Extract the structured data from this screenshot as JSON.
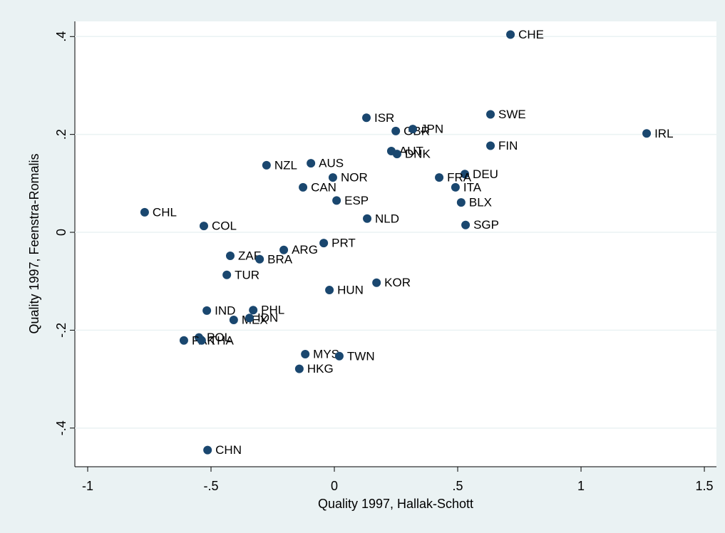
{
  "chart_data": {
    "type": "scatter",
    "xlabel": "Quality 1997, Hallak-Schott",
    "ylabel": "Quality 1997, Feenstra-Romalis",
    "color": "#1a476f",
    "grid": true,
    "point_labels": [
      "CHE",
      "SWE",
      "IRL",
      "FIN",
      "ISR",
      "GBR",
      "JPN",
      "AUT",
      "DNK",
      "NZL",
      "AUS",
      "NOR",
      "DEU",
      "FRA",
      "ITA",
      "CAN",
      "ESP",
      "BLX",
      "CHL",
      "NLD",
      "COL",
      "SGP",
      "PRT",
      "ARG",
      "ZAF",
      "BRA",
      "TUR",
      "HUN",
      "KOR",
      "IND",
      "PHL",
      "MEX",
      "IDN",
      "POL",
      "PAK",
      "THA",
      "MYS",
      "TWN",
      "HKG",
      "CHN"
    ],
    "x": [
      0.714,
      0.633,
      1.266,
      0.633,
      0.13,
      0.249,
      0.318,
      0.231,
      0.254,
      -0.275,
      -0.095,
      -0.006,
      0.529,
      0.425,
      0.491,
      -0.127,
      0.009,
      0.514,
      -0.769,
      0.133,
      -0.529,
      0.532,
      -0.043,
      -0.205,
      -0.422,
      -0.303,
      -0.436,
      -0.02,
      0.171,
      -0.517,
      -0.329,
      -0.408,
      -0.344,
      -0.549,
      -0.61,
      -0.538,
      -0.118,
      0.02,
      -0.142,
      -0.514
    ],
    "values": [
      0.404,
      0.241,
      0.202,
      0.177,
      0.234,
      0.207,
      0.211,
      0.166,
      0.16,
      0.137,
      0.141,
      0.112,
      0.119,
      0.112,
      0.092,
      0.092,
      0.065,
      0.061,
      0.041,
      0.028,
      0.013,
      0.015,
      -0.022,
      -0.036,
      -0.048,
      -0.055,
      -0.087,
      -0.118,
      -0.103,
      -0.16,
      -0.159,
      -0.179,
      -0.175,
      -0.215,
      -0.221,
      -0.221,
      -0.249,
      -0.253,
      -0.279,
      -0.445
    ],
    "xlim": [
      -1.052,
      1.549
    ],
    "ylim": [
      -0.479,
      0.431
    ],
    "xticks": [
      -1,
      {
        "value": -0.5,
        "label": "-.5"
      },
      0,
      {
        "value": 0.5,
        "label": ".5"
      },
      1,
      1.5
    ],
    "yticks": [
      {
        "value": -0.4,
        "label": "-.4"
      },
      {
        "value": -0.2,
        "label": "-.2"
      },
      0,
      {
        "value": 0.2,
        "label": ".2"
      },
      {
        "value": 0.4,
        "label": ".4"
      }
    ]
  }
}
